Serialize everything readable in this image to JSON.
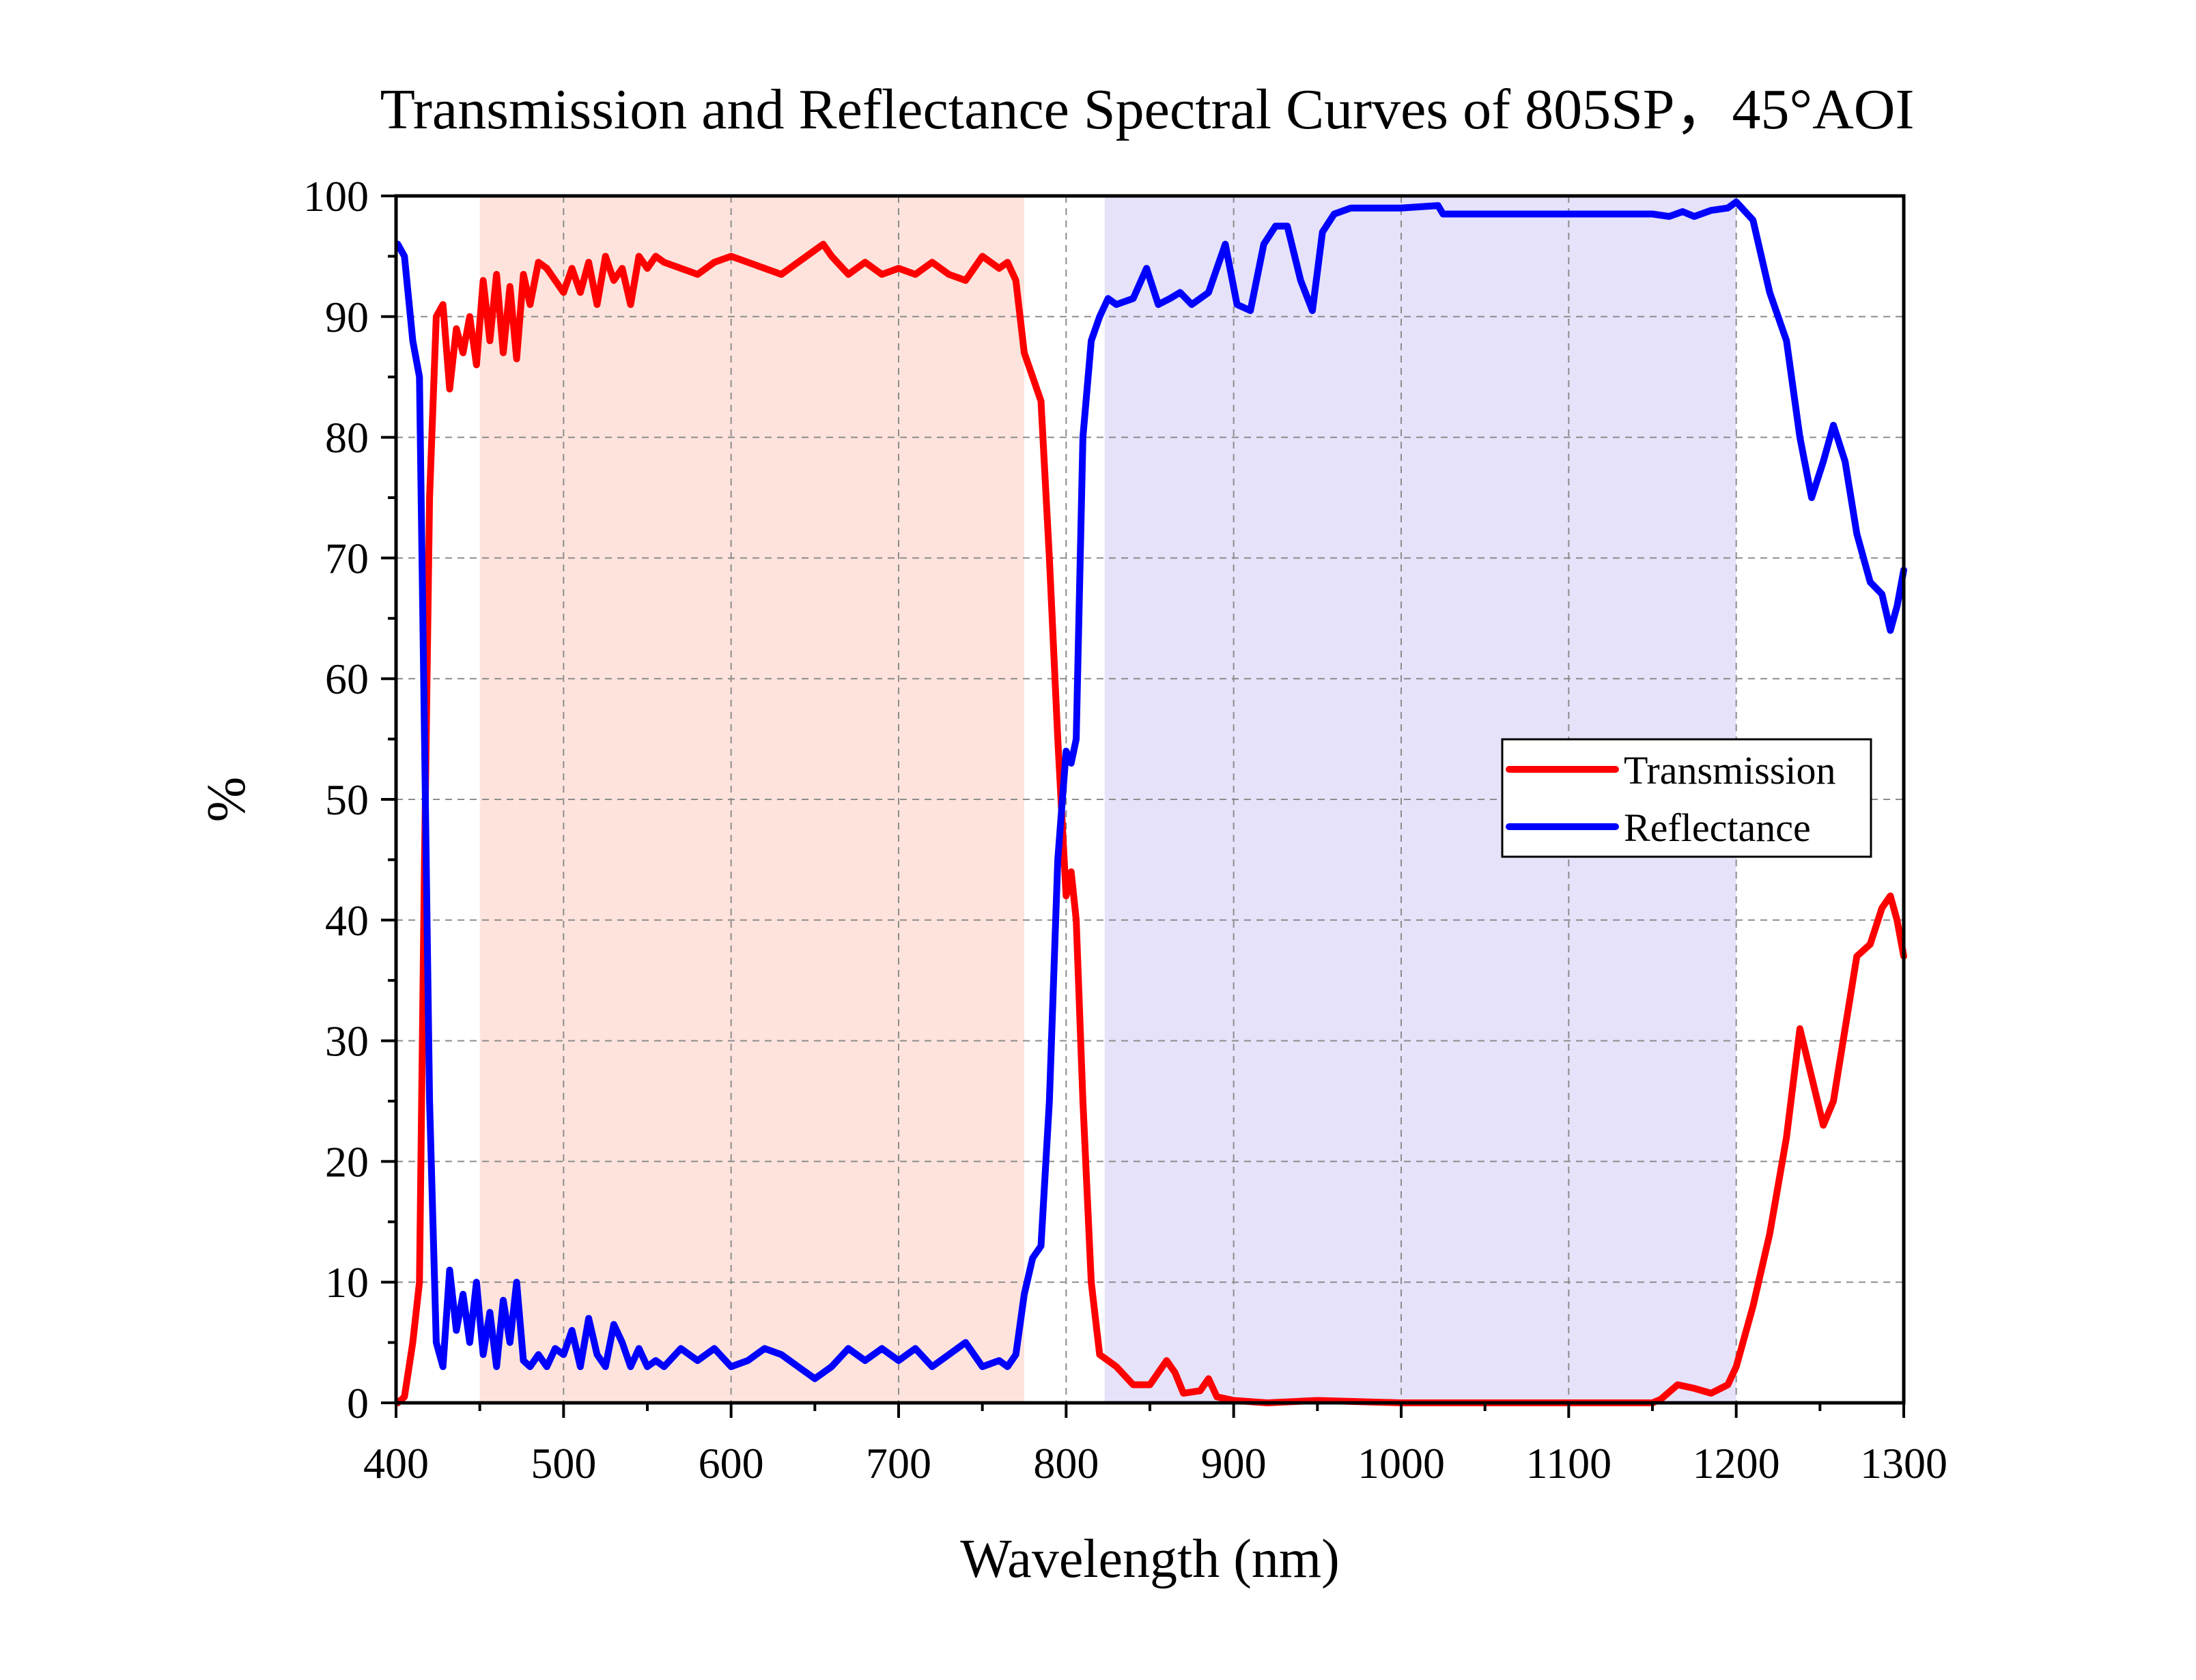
{
  "chart_data": {
    "type": "line",
    "title": "Transmission and Reflectance Spectral Curves of 805SP，45°AOI",
    "xlabel": "Wavelength (nm)",
    "ylabel": "%",
    "xlim": [
      400,
      1300
    ],
    "ylim": [
      0,
      100
    ],
    "xticks": [
      "400",
      "500",
      "600",
      "700",
      "800",
      "900",
      "1000",
      "1100",
      "1200",
      "1300"
    ],
    "yticks": [
      "0",
      "10",
      "20",
      "30",
      "40",
      "50",
      "60",
      "70",
      "80",
      "90",
      "100"
    ],
    "grid": true,
    "legend_position": "right-middle",
    "shaded_regions": [
      {
        "x_start": 450,
        "x_end": 775,
        "color": "#fde3dc"
      },
      {
        "x_start": 823,
        "x_end": 1200,
        "color": "#e5e2fa"
      }
    ],
    "series": [
      {
        "name": "Transmission",
        "color": "#ff0000",
        "x": [
          401,
          405,
          410,
          414,
          417,
          420,
          424,
          428,
          432,
          436,
          440,
          444,
          448,
          452,
          456,
          460,
          464,
          468,
          472,
          476,
          480,
          485,
          490,
          495,
          500,
          505,
          510,
          515,
          520,
          525,
          530,
          535,
          540,
          545,
          550,
          555,
          560,
          570,
          580,
          590,
          600,
          610,
          620,
          630,
          640,
          650,
          655,
          660,
          670,
          680,
          690,
          700,
          710,
          720,
          730,
          740,
          750,
          760,
          765,
          770,
          775,
          780,
          785,
          790,
          795,
          800,
          803,
          806,
          810,
          815,
          820,
          825,
          830,
          840,
          850,
          860,
          865,
          870,
          880,
          885,
          890,
          900,
          920,
          950,
          1000,
          1050,
          1100,
          1150,
          1155,
          1165,
          1175,
          1185,
          1195,
          1200,
          1210,
          1220,
          1230,
          1238,
          1245,
          1252,
          1258,
          1265,
          1272,
          1280,
          1287,
          1292,
          1296,
          1300
        ],
        "values": [
          0,
          0.5,
          5,
          10,
          45,
          75,
          90,
          91,
          84,
          89,
          87,
          90,
          86,
          93,
          88,
          93.5,
          87,
          92.5,
          86.5,
          93.5,
          91,
          94.5,
          94,
          93,
          92,
          94,
          92,
          94.5,
          91,
          95,
          93,
          94,
          91,
          95,
          94,
          95,
          94.5,
          94,
          93.5,
          94.5,
          95,
          94.5,
          94,
          93.5,
          94.5,
          95.5,
          96,
          95,
          93.5,
          94.5,
          93.5,
          94,
          93.5,
          94.5,
          93.5,
          93,
          95,
          94,
          94.5,
          93,
          87,
          85,
          83,
          70,
          55,
          42,
          44,
          40,
          25,
          10,
          4,
          3.5,
          3,
          1.5,
          1.5,
          3.5,
          2.5,
          0.8,
          1,
          2,
          0.5,
          0.2,
          0,
          0.2,
          0,
          0,
          0,
          0,
          0.3,
          1.5,
          1.2,
          0.8,
          1.5,
          3,
          8,
          14,
          22,
          31,
          27,
          23,
          25,
          31,
          37,
          38,
          41,
          42,
          40,
          37
        ]
      },
      {
        "name": "Reflectance",
        "color": "#0000ff",
        "x": [
          401,
          405,
          410,
          414,
          417,
          420,
          424,
          428,
          432,
          436,
          440,
          444,
          448,
          452,
          456,
          460,
          464,
          468,
          472,
          476,
          480,
          485,
          490,
          495,
          500,
          505,
          510,
          515,
          520,
          525,
          530,
          535,
          540,
          545,
          550,
          555,
          560,
          570,
          580,
          590,
          600,
          610,
          620,
          630,
          640,
          650,
          655,
          660,
          670,
          680,
          690,
          700,
          710,
          720,
          730,
          740,
          750,
          760,
          765,
          770,
          775,
          780,
          785,
          790,
          795,
          800,
          803,
          806,
          810,
          815,
          820,
          825,
          830,
          840,
          848,
          855,
          862,
          868,
          875,
          885,
          895,
          902,
          910,
          918,
          925,
          932,
          940,
          947,
          953,
          960,
          970,
          990,
          1000,
          1022,
          1025,
          1050,
          1100,
          1150,
          1160,
          1168,
          1175,
          1185,
          1195,
          1200,
          1210,
          1220,
          1230,
          1238,
          1245,
          1252,
          1258,
          1265,
          1272,
          1280,
          1287,
          1292,
          1296,
          1300
        ],
        "values": [
          96,
          95,
          88,
          85,
          55,
          25,
          5,
          3,
          11,
          6,
          9,
          5,
          10,
          4,
          7.5,
          3,
          8.5,
          5,
          10,
          3.5,
          3,
          4,
          3,
          4.5,
          4,
          6,
          3,
          7,
          4,
          3,
          6.5,
          5,
          3,
          4.5,
          3,
          3.5,
          3,
          4.5,
          3.5,
          4.5,
          3,
          3.5,
          4.5,
          4,
          3,
          2,
          2.5,
          3,
          4.5,
          3.5,
          4.5,
          3.5,
          4.5,
          3,
          4,
          5,
          3,
          3.5,
          3,
          4,
          9,
          12,
          13,
          25,
          45,
          54,
          53,
          55,
          80,
          88,
          90,
          91.5,
          91,
          91.5,
          94,
          91,
          91.5,
          92,
          91,
          92,
          96,
          91,
          90.5,
          96,
          97.5,
          97.5,
          93,
          90.5,
          97,
          98.5,
          99,
          99,
          99,
          99.2,
          98.5,
          98.5,
          98.5,
          98.5,
          98.3,
          98.7,
          98.3,
          98.8,
          99,
          99.5,
          98,
          92,
          88,
          80,
          75,
          78,
          81,
          78,
          72,
          68,
          67,
          64,
          66,
          69
        ]
      }
    ]
  }
}
